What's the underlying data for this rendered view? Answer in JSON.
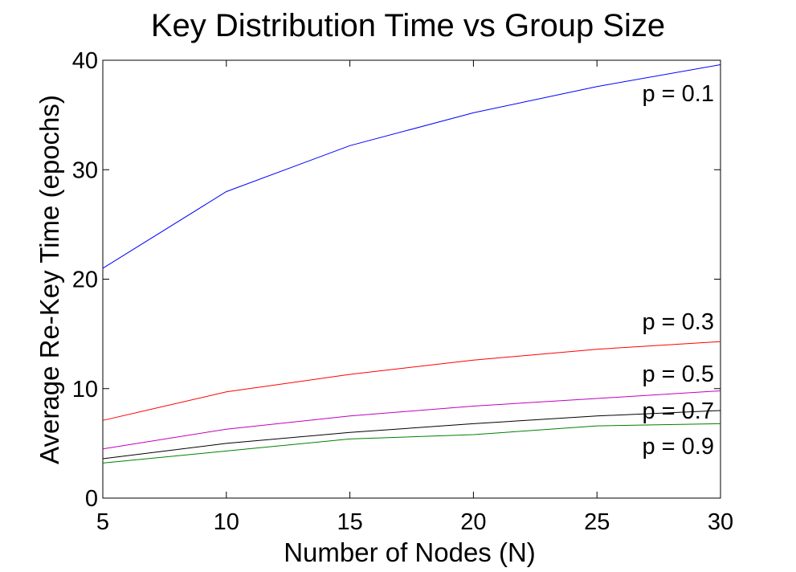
{
  "chart_data": {
    "type": "line",
    "title": "Key Distribution Time vs Group Size",
    "xlabel": "Number of Nodes (N)",
    "ylabel": "Average Re-Key Time (epochs)",
    "xlim": [
      5,
      30
    ],
    "ylim": [
      0,
      40
    ],
    "xticks": [
      5,
      10,
      15,
      20,
      25,
      30
    ],
    "yticks": [
      0,
      10,
      20,
      30,
      40
    ],
    "grid": false,
    "x": [
      5,
      10,
      15,
      20,
      25,
      30
    ],
    "series": [
      {
        "name": "p = 0.1",
        "color": "#0000ff",
        "values": [
          21.0,
          28.0,
          32.2,
          35.2,
          37.6,
          39.6
        ]
      },
      {
        "name": "p = 0.3",
        "color": "#ff0000",
        "values": [
          7.1,
          9.7,
          11.3,
          12.6,
          13.6,
          14.3
        ]
      },
      {
        "name": "p = 0.5",
        "color": "#bf00bf",
        "values": [
          4.5,
          6.3,
          7.5,
          8.4,
          9.1,
          9.8
        ]
      },
      {
        "name": "p = 0.7",
        "color": "#000000",
        "values": [
          3.6,
          5.0,
          6.0,
          6.8,
          7.5,
          8.0
        ]
      },
      {
        "name": "p = 0.9",
        "color": "#008000",
        "values": [
          3.2,
          4.3,
          5.4,
          5.8,
          6.6,
          6.8
        ]
      }
    ]
  }
}
